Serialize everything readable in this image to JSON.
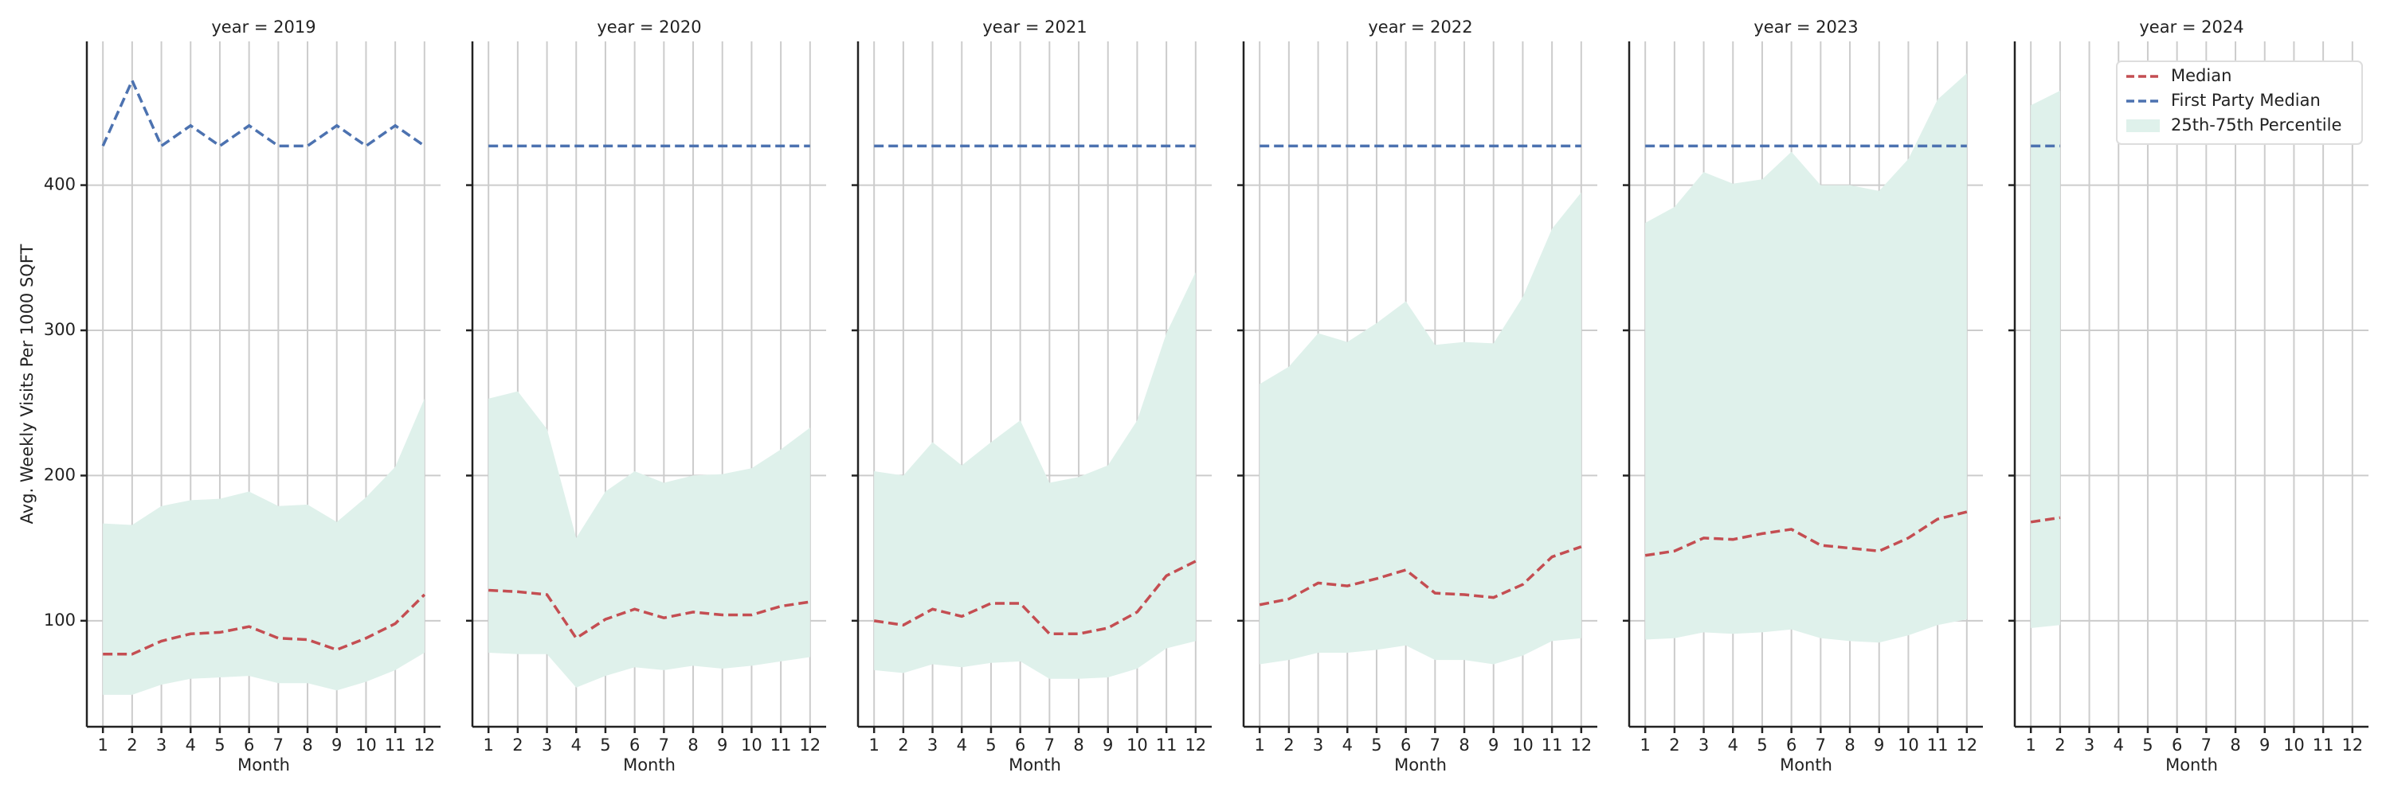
{
  "chart_data": [
    {
      "type": "line",
      "title": "year = 2019",
      "xlabel": "Month",
      "ylabel": "Avg. Weekly Visits Per 1000 SQFT",
      "x": [
        1,
        2,
        3,
        4,
        5,
        6,
        7,
        8,
        9,
        10,
        11,
        12
      ],
      "xlim": [
        0.45,
        12.55
      ],
      "xticks": [
        1,
        2,
        3,
        4,
        5,
        6,
        7,
        8,
        9,
        10,
        11,
        12
      ],
      "ylim": [
        27,
        499
      ],
      "yticks": [
        100,
        200,
        300,
        400
      ],
      "grid": true,
      "series": [
        {
          "name": "Median",
          "color": "#c44e52",
          "values": [
            77,
            77,
            86,
            91,
            92,
            96,
            88,
            87,
            80,
            88,
            98,
            118
          ]
        },
        {
          "name": "First Party Median",
          "color": "#4c72b0",
          "values": [
            427,
            472,
            427,
            441,
            427,
            441,
            427,
            427,
            441,
            427,
            441,
            427
          ]
        },
        {
          "name": "25th-75th Percentile",
          "color": "#dff1eb",
          "low": [
            49,
            49,
            56,
            60,
            61,
            62,
            57,
            57,
            52,
            58,
            66,
            78
          ],
          "high": [
            167,
            166,
            179,
            183,
            184,
            189,
            179,
            180,
            168,
            185,
            206,
            253
          ]
        }
      ]
    },
    {
      "type": "line",
      "title": "year = 2020",
      "xlabel": "Month",
      "x": [
        1,
        2,
        3,
        4,
        5,
        6,
        7,
        8,
        9,
        10,
        11,
        12
      ],
      "xlim": [
        0.45,
        12.55
      ],
      "xticks": [
        1,
        2,
        3,
        4,
        5,
        6,
        7,
        8,
        9,
        10,
        11,
        12
      ],
      "ylim": [
        27,
        499
      ],
      "yticks": [
        100,
        200,
        300,
        400
      ],
      "grid": true,
      "series": [
        {
          "name": "Median",
          "color": "#c44e52",
          "values": [
            121,
            120,
            118,
            88,
            101,
            108,
            102,
            106,
            104,
            104,
            110,
            113
          ]
        },
        {
          "name": "First Party Median",
          "color": "#4c72b0",
          "values": [
            427,
            427,
            427,
            427,
            427,
            427,
            427,
            427,
            427,
            427,
            427,
            427
          ]
        },
        {
          "name": "25th-75th Percentile",
          "color": "#dff1eb",
          "low": [
            78,
            77,
            77,
            54,
            62,
            68,
            66,
            69,
            67,
            69,
            72,
            75
          ],
          "high": [
            253,
            258,
            232,
            157,
            189,
            203,
            195,
            200,
            201,
            205,
            218,
            233
          ]
        }
      ]
    },
    {
      "type": "line",
      "title": "year = 2021",
      "xlabel": "Month",
      "x": [
        1,
        2,
        3,
        4,
        5,
        6,
        7,
        8,
        9,
        10,
        11,
        12
      ],
      "xlim": [
        0.45,
        12.55
      ],
      "xticks": [
        1,
        2,
        3,
        4,
        5,
        6,
        7,
        8,
        9,
        10,
        11,
        12
      ],
      "ylim": [
        27,
        499
      ],
      "yticks": [
        100,
        200,
        300,
        400
      ],
      "grid": true,
      "series": [
        {
          "name": "Median",
          "color": "#c44e52",
          "values": [
            100,
            97,
            108,
            103,
            112,
            112,
            91,
            91,
            95,
            106,
            131,
            141
          ]
        },
        {
          "name": "First Party Median",
          "color": "#4c72b0",
          "values": [
            427,
            427,
            427,
            427,
            427,
            427,
            427,
            427,
            427,
            427,
            427,
            427
          ]
        },
        {
          "name": "25th-75th Percentile",
          "color": "#dff1eb",
          "low": [
            66,
            64,
            70,
            68,
            71,
            72,
            60,
            60,
            61,
            67,
            81,
            86
          ],
          "high": [
            203,
            200,
            223,
            207,
            223,
            238,
            195,
            199,
            207,
            238,
            298,
            340
          ]
        }
      ]
    },
    {
      "type": "line",
      "title": "year = 2022",
      "xlabel": "Month",
      "x": [
        1,
        2,
        3,
        4,
        5,
        6,
        7,
        8,
        9,
        10,
        11,
        12
      ],
      "xlim": [
        0.45,
        12.55
      ],
      "xticks": [
        1,
        2,
        3,
        4,
        5,
        6,
        7,
        8,
        9,
        10,
        11,
        12
      ],
      "ylim": [
        27,
        499
      ],
      "yticks": [
        100,
        200,
        300,
        400
      ],
      "grid": true,
      "series": [
        {
          "name": "Median",
          "color": "#c44e52",
          "values": [
            111,
            115,
            126,
            124,
            129,
            135,
            119,
            118,
            116,
            125,
            144,
            151
          ]
        },
        {
          "name": "First Party Median",
          "color": "#4c72b0",
          "values": [
            427,
            427,
            427,
            427,
            427,
            427,
            427,
            427,
            427,
            427,
            427,
            427
          ]
        },
        {
          "name": "25th-75th Percentile",
          "color": "#dff1eb",
          "low": [
            70,
            73,
            78,
            78,
            80,
            83,
            73,
            73,
            70,
            76,
            86,
            88
          ],
          "high": [
            263,
            275,
            298,
            292,
            305,
            320,
            290,
            292,
            291,
            323,
            370,
            395
          ]
        }
      ]
    },
    {
      "type": "line",
      "title": "year = 2023",
      "xlabel": "Month",
      "x": [
        1,
        2,
        3,
        4,
        5,
        6,
        7,
        8,
        9,
        10,
        11,
        12
      ],
      "xlim": [
        0.45,
        12.55
      ],
      "xticks": [
        1,
        2,
        3,
        4,
        5,
        6,
        7,
        8,
        9,
        10,
        11,
        12
      ],
      "ylim": [
        27,
        499
      ],
      "yticks": [
        100,
        200,
        300,
        400
      ],
      "grid": true,
      "series": [
        {
          "name": "Median",
          "color": "#c44e52",
          "values": [
            145,
            148,
            157,
            156,
            160,
            163,
            152,
            150,
            148,
            157,
            170,
            175
          ]
        },
        {
          "name": "First Party Median",
          "color": "#4c72b0",
          "values": [
            427,
            427,
            427,
            427,
            427,
            427,
            427,
            427,
            427,
            427,
            427,
            427
          ]
        },
        {
          "name": "25th-75th Percentile",
          "color": "#dff1eb",
          "low": [
            87,
            88,
            92,
            91,
            92,
            94,
            88,
            86,
            85,
            90,
            97,
            101
          ],
          "high": [
            374,
            385,
            409,
            401,
            404,
            423,
            400,
            400,
            396,
            418,
            459,
            477
          ]
        }
      ]
    },
    {
      "type": "line",
      "title": "year = 2024",
      "xlabel": "Month",
      "x": [
        1,
        2
      ],
      "xlim": [
        0.45,
        12.55
      ],
      "xticks": [
        1,
        2,
        3,
        4,
        5,
        6,
        7,
        8,
        9,
        10,
        11,
        12
      ],
      "ylim": [
        27,
        499
      ],
      "yticks": [
        100,
        200,
        300,
        400
      ],
      "grid": true,
      "legend": "upper right",
      "series": [
        {
          "name": "Median",
          "color": "#c44e52",
          "values": [
            168,
            171
          ]
        },
        {
          "name": "First Party Median",
          "color": "#4c72b0",
          "values": [
            427,
            427
          ]
        },
        {
          "name": "25th-75th Percentile",
          "color": "#dff1eb",
          "low": [
            95,
            97
          ],
          "high": [
            455,
            465
          ]
        }
      ]
    }
  ]
}
